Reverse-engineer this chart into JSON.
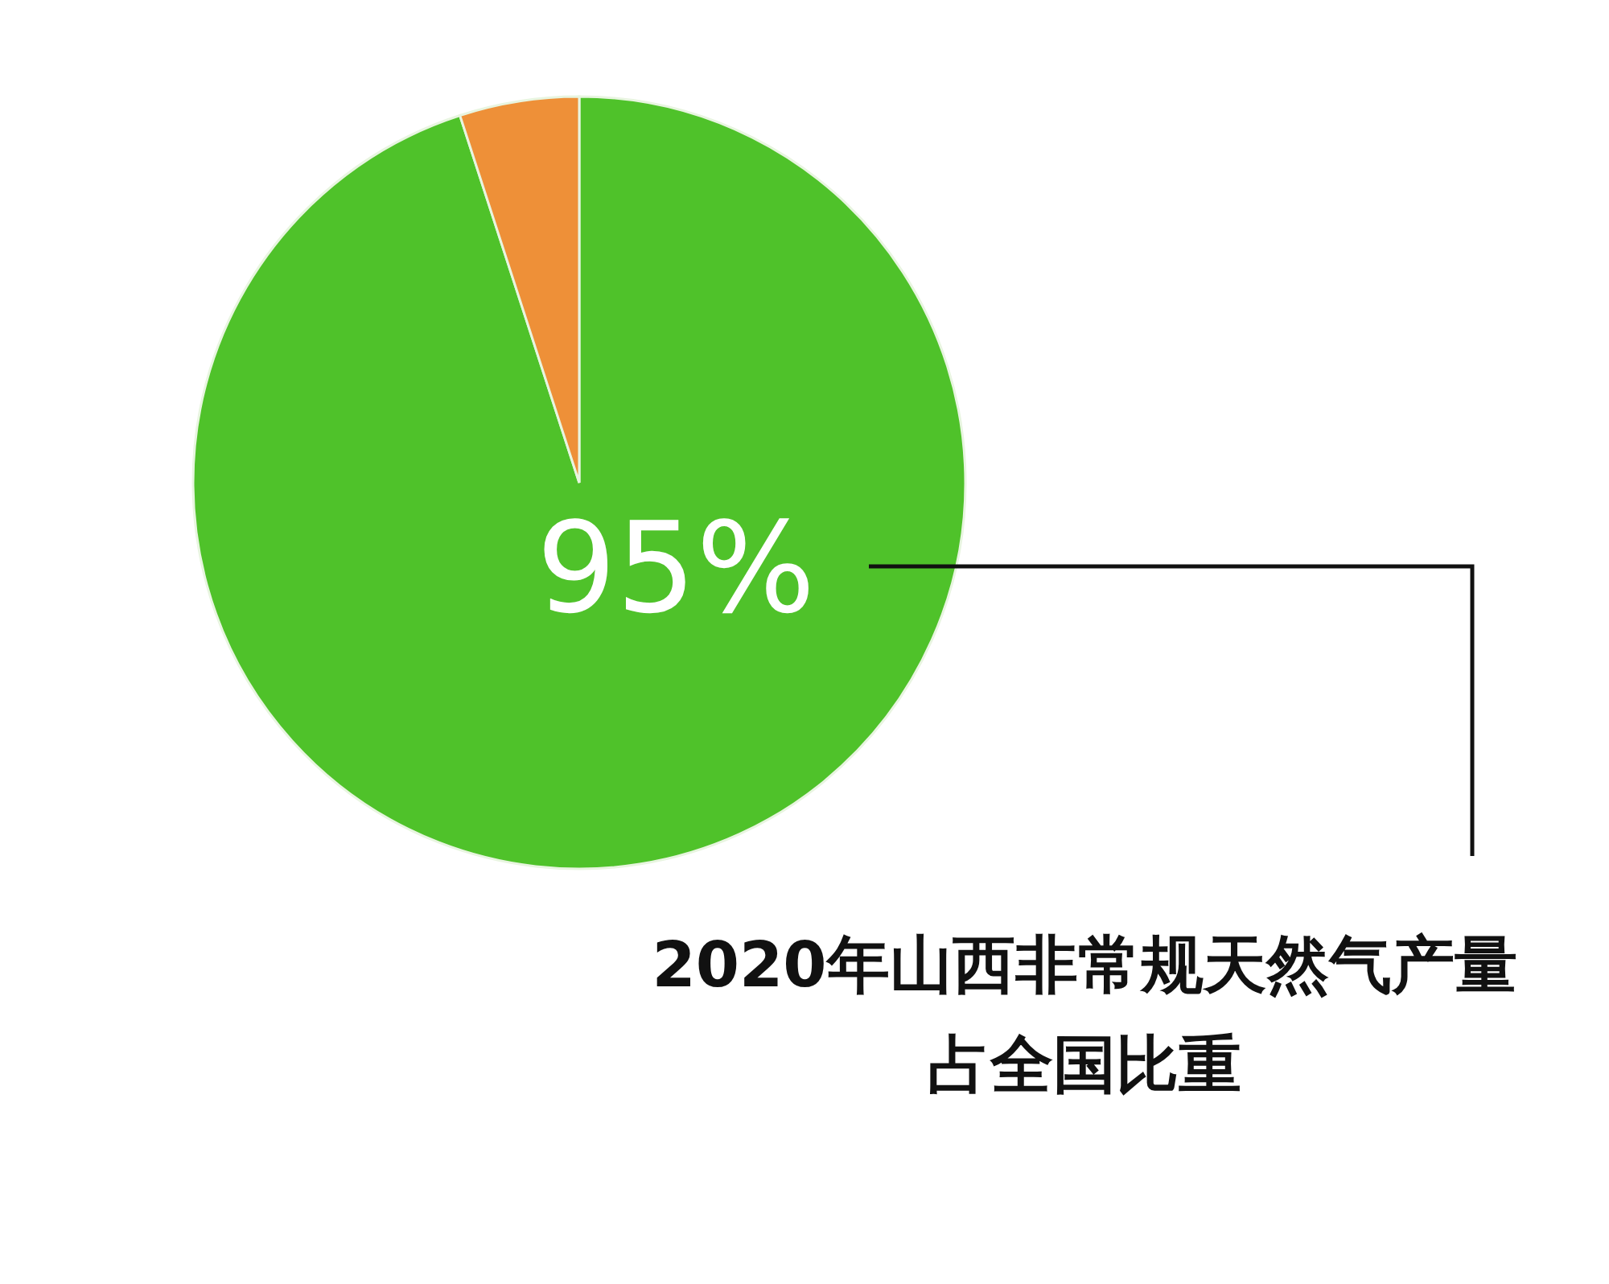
{
  "chart_data": {
    "type": "pie",
    "categories": [
      null,
      null
    ],
    "values": [
      95,
      5
    ],
    "colors": [
      "#4fc22a",
      "#ee9038"
    ],
    "value_labels": [
      "95%",
      null
    ],
    "annotations": [
      "2020年山西非常规天然气产量占全国比重"
    ]
  }
}
